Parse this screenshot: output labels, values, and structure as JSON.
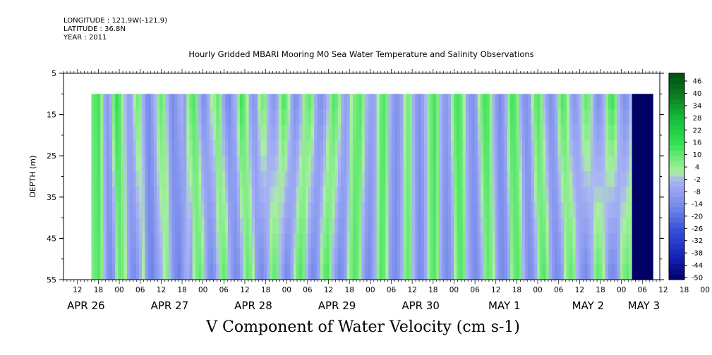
{
  "header": {
    "longitude": "LONGITUDE : 121.9W(-121.9)",
    "latitude": "LATITUDE : 36.8N",
    "year": "YEAR : 2011"
  },
  "chart_data": {
    "type": "heatmap",
    "title": "Hourly Gridded MBARI Mooring M0 Sea Water Temperature and Salinity Observations",
    "variable_label": "V Component of Water Velocity (cm s-1)",
    "ylabel": "DEPTH (m)",
    "xlabel": "",
    "y_ticks": [
      "5",
      "15",
      "25",
      "35",
      "45",
      "55"
    ],
    "ylim": [
      5,
      55
    ],
    "data_depth_range": [
      10,
      55
    ],
    "x_hour_ticks": [
      "12",
      "18",
      "00",
      "06",
      "12",
      "18",
      "00",
      "06",
      "12",
      "18",
      "00",
      "06",
      "12",
      "18",
      "00",
      "06",
      "12",
      "18",
      "00",
      "06",
      "12",
      "18",
      "00",
      "06",
      "12",
      "18",
      "00",
      "06",
      "12",
      "18",
      "00",
      "06"
    ],
    "x_date_labels": [
      "APR 26",
      "APR 27",
      "APR 28",
      "APR 29",
      "APR 30",
      "MAY  1",
      "MAY  2",
      "MAY  3"
    ],
    "colorbar": {
      "ticks": [
        "46",
        "40",
        "34",
        "28",
        "22",
        "16",
        "10",
        "4",
        "-2",
        "-8",
        "-14",
        "-20",
        "-26",
        "-32",
        "-38",
        "-44",
        "-50"
      ],
      "range": [
        -50,
        50
      ],
      "colors": {
        "negative_strong": "#000066",
        "negative_mid": "#3a5ce0",
        "negative_weak": "#a4b1f0",
        "positive_weak": "#a8f0a0",
        "positive_mid": "#2ee04a",
        "positive_strong": "#005a14"
      }
    },
    "time_columns_note": "velocity fields per ~3h column from APR 26 ~16h to MAY 3 ~09h",
    "series": [
      {
        "name": "",
        "values_surface": [
          10,
          12,
          14,
          4,
          -6,
          -10,
          -4,
          8,
          16,
          12,
          4,
          -2,
          -8,
          -6,
          2,
          8,
          6,
          -4,
          -12,
          -14,
          -8,
          -2,
          6,
          10,
          6,
          -2,
          -10,
          -14,
          -10,
          -6,
          -4,
          -8,
          4,
          10,
          12,
          8,
          -4,
          -12,
          -10,
          -4,
          2,
          4,
          10,
          6,
          -6,
          -12,
          -14,
          -8,
          -4,
          6,
          14,
          10,
          2,
          -6,
          -10,
          -8,
          2,
          8,
          6,
          -2,
          -8,
          -10,
          -6,
          4,
          12,
          10,
          2,
          -6,
          -12,
          -10,
          -4,
          4,
          8,
          10,
          6,
          -4,
          -10,
          -12,
          -8,
          -2,
          6,
          12,
          10,
          4,
          -4,
          -8,
          -6,
          2,
          8,
          10,
          12,
          6,
          -2,
          -6,
          -8,
          -6,
          2,
          10,
          12,
          8,
          -2,
          -8,
          -12,
          -10,
          -6,
          2,
          8,
          6,
          -4,
          -10,
          -12,
          -8,
          -2,
          6,
          10,
          14,
          8,
          -2,
          -8,
          -10,
          -6,
          4,
          12,
          14,
          10,
          2,
          -6,
          -10,
          -12,
          -8,
          2,
          10,
          14,
          12,
          4,
          -4,
          -10,
          -14,
          -10,
          -4,
          6,
          14,
          12,
          6,
          -4,
          -10,
          -12,
          -8,
          2,
          10,
          12,
          6,
          -2,
          -8,
          -12,
          -10,
          -4,
          6,
          12,
          10,
          2,
          -6,
          -10,
          -8,
          -2,
          6,
          10,
          8,
          0,
          -8,
          -12,
          -10,
          -4,
          6,
          12,
          14,
          8,
          -2,
          -8,
          -12,
          -10,
          -2,
          8,
          12,
          10,
          2,
          -6,
          -10,
          -8
        ],
        "values_bottom": [
          8,
          10,
          12,
          6,
          -2,
          -12,
          -14,
          -10,
          4,
          10,
          8,
          2,
          -6,
          -12,
          -14,
          -10,
          -4,
          2,
          -8,
          -14,
          -16,
          -12,
          -8,
          -4,
          2,
          6,
          -2,
          -10,
          -14,
          -16,
          -12,
          -6,
          -4,
          -8,
          2,
          8,
          10,
          6,
          -4,
          -12,
          -14,
          -10,
          -2,
          6,
          10,
          8,
          -4,
          -10,
          -14,
          -12,
          -6,
          4,
          10,
          8,
          2,
          -8,
          -12,
          -14,
          -10,
          -4,
          6,
          10,
          8,
          -2,
          -8,
          -14,
          -12,
          -6,
          2,
          10,
          12,
          8,
          -2,
          -10,
          -14,
          -12,
          -6,
          4,
          10,
          12,
          6,
          -4,
          -10,
          -14,
          -12,
          -8,
          2,
          8,
          12,
          10,
          4,
          -6,
          -12,
          -14,
          -10,
          -4,
          6,
          12,
          10,
          2,
          -8,
          -12,
          -14,
          -10,
          -4,
          6,
          10,
          8,
          -2,
          -10,
          -14,
          -12,
          -6,
          4,
          10,
          12,
          6,
          -4,
          -10,
          -14,
          -12,
          -8,
          2,
          10,
          12,
          8,
          -2,
          -8,
          -12,
          -14,
          -10,
          -4,
          6,
          10,
          8,
          2,
          -6,
          -12,
          -14,
          -12,
          -6,
          4,
          10,
          12,
          8,
          -2,
          -10,
          -14,
          -12,
          -6,
          4,
          10,
          12,
          6,
          -4,
          -10,
          -14,
          -12,
          -8,
          2,
          8,
          10,
          6,
          -2,
          -8,
          -12,
          -14,
          -10,
          -4,
          6,
          10,
          8,
          2,
          -6,
          -12,
          -14,
          -12,
          -6,
          4,
          8,
          10,
          6
        ]
      }
    ],
    "grid": false,
    "legend": "right colorbar"
  }
}
